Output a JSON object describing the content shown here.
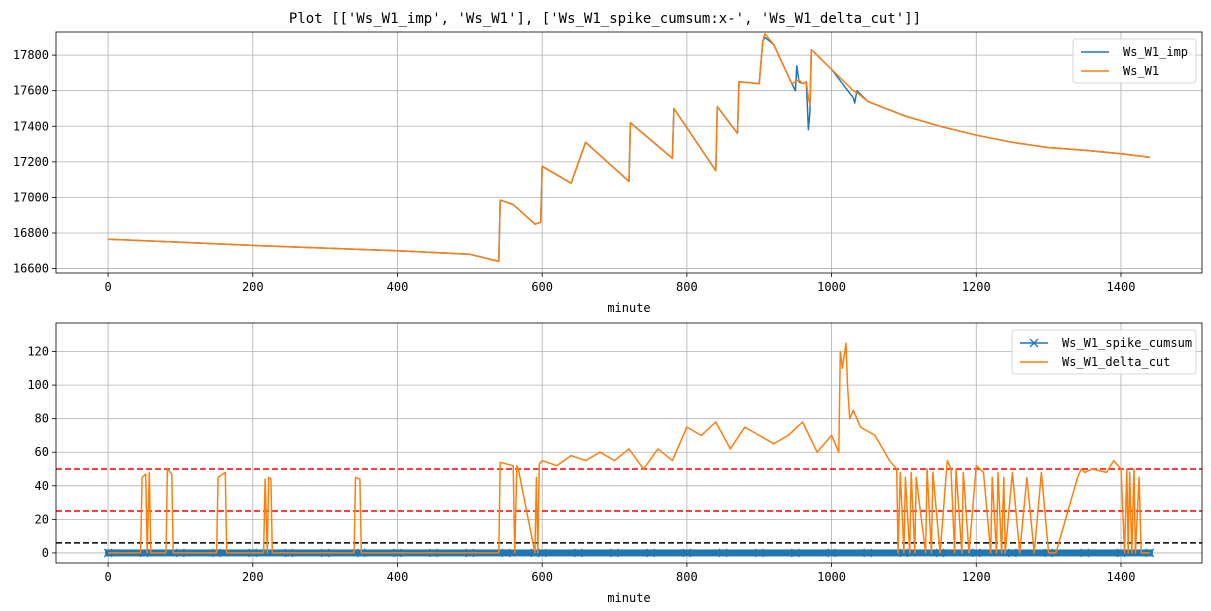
{
  "figure_title": "Plot [['Ws_W1_imp', 'Ws_W1'], ['Ws_W1_spike_cumsum:x-', 'Ws_W1_delta_cut']]",
  "chart_data": [
    {
      "type": "line",
      "xlabel": "minute",
      "ylabel": "",
      "xlim": [
        -72,
        1512
      ],
      "ylim": [
        16575,
        17930
      ],
      "xticks": [
        0,
        200,
        400,
        600,
        800,
        1000,
        1200,
        1400
      ],
      "yticks": [
        16600,
        16800,
        17000,
        17200,
        17400,
        17600,
        17800
      ],
      "grid": true,
      "legend": "top-right",
      "series": [
        {
          "name": "Ws_W1_imp",
          "color": "#1f77b4",
          "x": [
            0,
            100,
            200,
            300,
            400,
            500,
            540,
            542,
            560,
            590,
            598,
            600,
            640,
            660,
            720,
            722,
            780,
            782,
            840,
            842,
            870,
            872,
            900,
            905,
            908,
            920,
            945,
            950,
            952,
            955,
            960,
            965,
            968,
            970,
            972,
            975,
            1000,
            1030,
            1032,
            1035,
            1050,
            1100,
            1150,
            1200,
            1250,
            1300,
            1350,
            1400,
            1440
          ],
          "y": [
            16765,
            16748,
            16730,
            16715,
            16700,
            16680,
            16640,
            16985,
            16960,
            16850,
            16860,
            17175,
            17080,
            17310,
            17090,
            17420,
            17220,
            17500,
            17150,
            17510,
            17360,
            17650,
            17640,
            17880,
            17900,
            17860,
            17640,
            17600,
            17740,
            17650,
            17640,
            17650,
            17380,
            17480,
            17830,
            17820,
            17720,
            17560,
            17530,
            17600,
            17540,
            17460,
            17400,
            17350,
            17310,
            17280,
            17265,
            17245,
            17225
          ]
        },
        {
          "name": "Ws_W1",
          "color": "#ff7f0e",
          "x": [
            0,
            100,
            200,
            300,
            400,
            500,
            540,
            542,
            560,
            590,
            598,
            600,
            640,
            660,
            720,
            722,
            780,
            782,
            840,
            842,
            870,
            872,
            900,
            905,
            908,
            920,
            945,
            950,
            955,
            960,
            965,
            968,
            970,
            972,
            975,
            1000,
            1030,
            1035,
            1050,
            1100,
            1150,
            1200,
            1250,
            1300,
            1350,
            1400,
            1440
          ],
          "y": [
            16765,
            16748,
            16730,
            16715,
            16700,
            16680,
            16640,
            16985,
            16960,
            16850,
            16860,
            17175,
            17080,
            17310,
            17090,
            17420,
            17220,
            17500,
            17150,
            17510,
            17360,
            17650,
            17640,
            17880,
            17920,
            17860,
            17640,
            17650,
            17660,
            17640,
            17650,
            17560,
            17520,
            17830,
            17820,
            17720,
            17600,
            17590,
            17540,
            17460,
            17400,
            17350,
            17310,
            17280,
            17265,
            17245,
            17225
          ]
        }
      ]
    },
    {
      "type": "line",
      "xlabel": "minute",
      "ylabel": "",
      "xlim": [
        -72,
        1512
      ],
      "ylim": [
        -6,
        137
      ],
      "xticks": [
        0,
        200,
        400,
        600,
        800,
        1000,
        1200,
        1400
      ],
      "yticks": [
        0,
        20,
        40,
        60,
        80,
        100,
        120
      ],
      "grid": true,
      "legend": "top-right",
      "hlines": [
        {
          "y": 50,
          "color": "#ff0000",
          "style": "dashed"
        },
        {
          "y": 25,
          "color": "#ff0000",
          "style": "dashed"
        },
        {
          "y": 6,
          "color": "#000000",
          "style": "dashed"
        }
      ],
      "series": [
        {
          "name": "Ws_W1_spike_cumsum",
          "color": "#1f77b4",
          "marker": "x",
          "x": [
            0,
            50,
            100,
            150,
            200,
            250,
            300,
            350,
            400,
            450,
            500,
            550,
            590,
            600,
            650,
            700,
            750,
            800,
            850,
            900,
            950,
            1000,
            1050,
            1100,
            1150,
            1200,
            1250,
            1300,
            1350,
            1400,
            1440
          ],
          "y": [
            0,
            0,
            0,
            0,
            0,
            0,
            0,
            0,
            0,
            0,
            0,
            0,
            0,
            0,
            0,
            0,
            0,
            0,
            0,
            0,
            0,
            0,
            0,
            0,
            0,
            0,
            0,
            0,
            0,
            0,
            0
          ]
        },
        {
          "name": "Ws_W1_delta_cut",
          "color": "#ff7f0e",
          "x": [
            0,
            45,
            47,
            52,
            54,
            57,
            59,
            80,
            82,
            88,
            90,
            150,
            152,
            162,
            164,
            215,
            217,
            220,
            222,
            225,
            227,
            340,
            342,
            348,
            350,
            540,
            542,
            560,
            562,
            565,
            567,
            590,
            592,
            594,
            596,
            600,
            620,
            640,
            660,
            680,
            700,
            720,
            740,
            760,
            780,
            800,
            820,
            840,
            860,
            880,
            900,
            920,
            940,
            960,
            980,
            1000,
            1010,
            1012,
            1015,
            1020,
            1022,
            1025,
            1030,
            1040,
            1060,
            1080,
            1090,
            1092,
            1095,
            1100,
            1102,
            1108,
            1110,
            1115,
            1117,
            1130,
            1132,
            1138,
            1140,
            1150,
            1160,
            1165,
            1170,
            1172,
            1180,
            1182,
            1190,
            1200,
            1210,
            1220,
            1222,
            1228,
            1230,
            1235,
            1238,
            1240,
            1250,
            1260,
            1270,
            1280,
            1290,
            1300,
            1310,
            1340,
            1345,
            1350,
            1360,
            1380,
            1390,
            1400,
            1405,
            1408,
            1410,
            1412,
            1415,
            1418,
            1420,
            1425,
            1428,
            1430,
            1440
          ],
          "y": [
            0,
            0,
            45,
            47,
            0,
            48,
            0,
            0,
            50,
            47,
            0,
            0,
            45,
            48,
            0,
            0,
            44,
            0,
            45,
            44,
            0,
            0,
            45,
            44,
            0,
            0,
            54,
            52,
            0,
            52,
            50,
            0,
            45,
            0,
            53,
            55,
            52,
            58,
            55,
            60,
            55,
            62,
            50,
            62,
            55,
            75,
            70,
            78,
            62,
            75,
            70,
            65,
            70,
            78,
            60,
            70,
            60,
            120,
            110,
            125,
            100,
            80,
            85,
            75,
            70,
            55,
            50,
            0,
            48,
            0,
            45,
            0,
            48,
            0,
            45,
            0,
            50,
            0,
            48,
            0,
            55,
            50,
            0,
            50,
            0,
            48,
            0,
            52,
            48,
            0,
            45,
            0,
            48,
            0,
            45,
            0,
            48,
            0,
            45,
            0,
            48,
            0,
            0,
            45,
            50,
            48,
            50,
            48,
            55,
            50,
            0,
            50,
            0,
            48,
            0,
            50,
            0,
            45,
            0,
            0,
            0
          ]
        }
      ]
    }
  ]
}
